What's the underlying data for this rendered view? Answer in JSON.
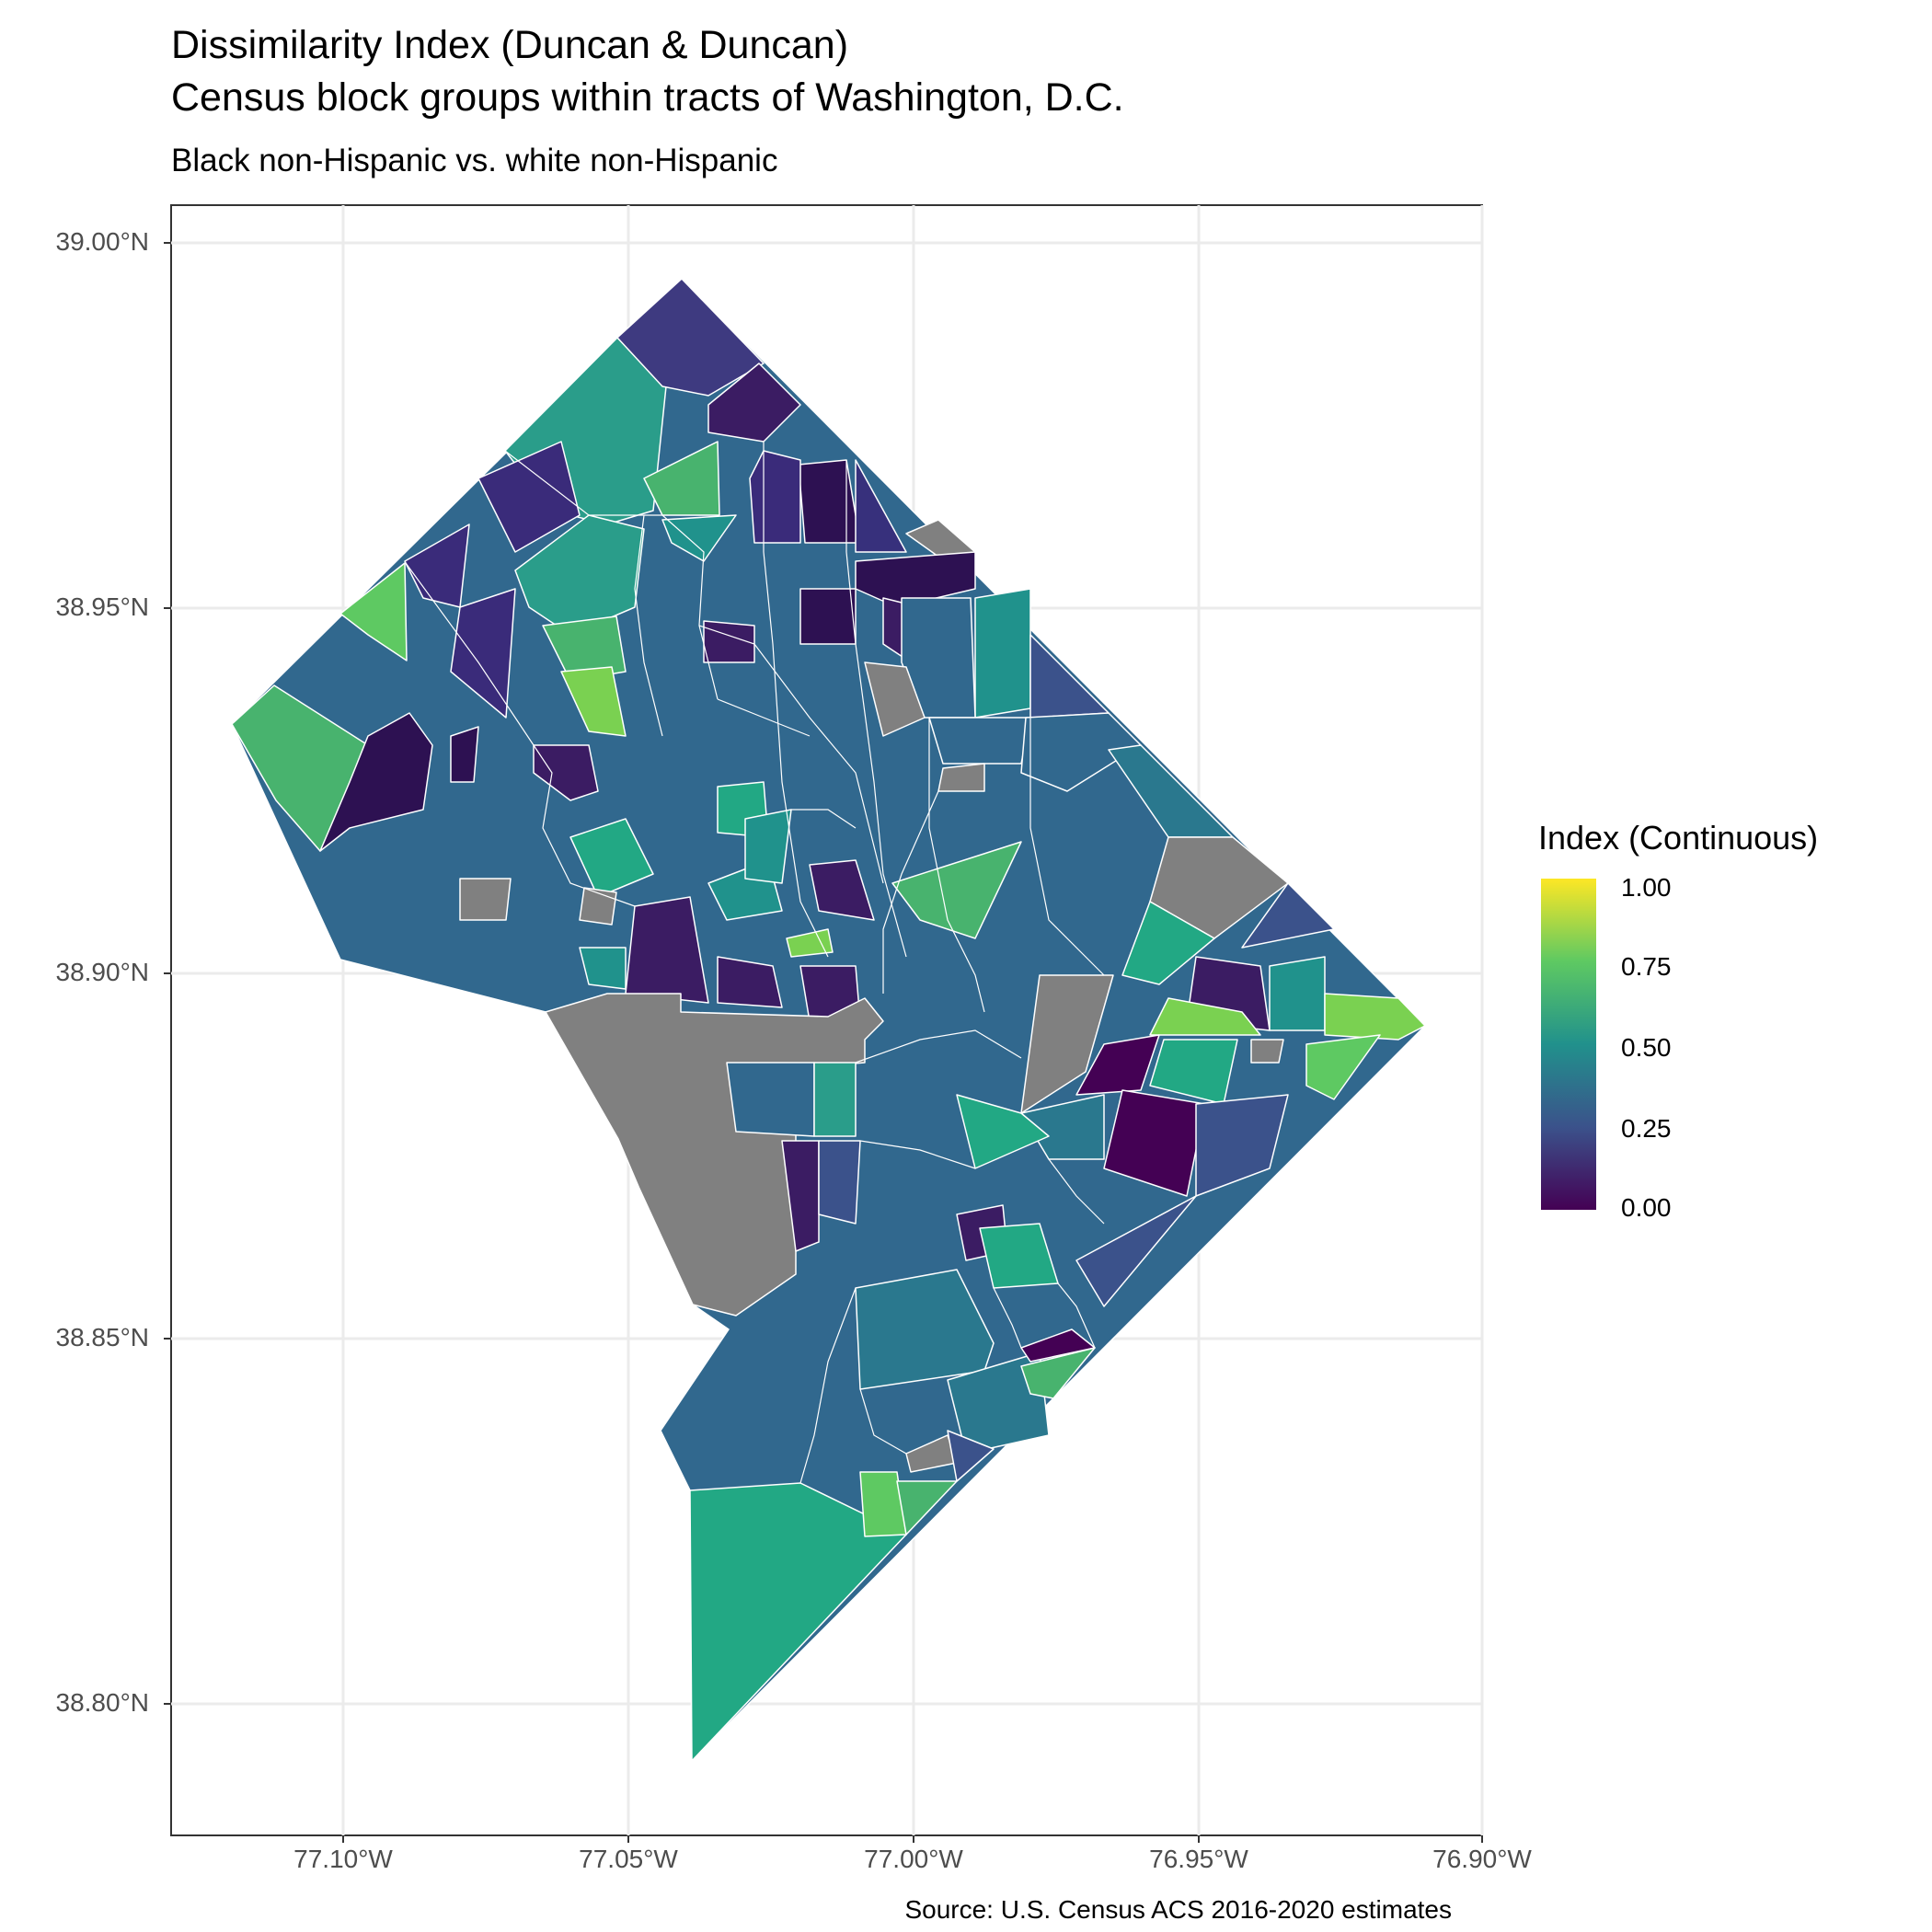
{
  "title_line1": "Dissimilarity Index (Duncan & Duncan)",
  "title_line2": "Census block groups within tracts of Washington, D.C.",
  "subtitle": "Black non-Hispanic vs. white non-Hispanic",
  "caption": "Source: U.S. Census ACS 2016-2020 estimates",
  "legend": {
    "title": "Index (Continuous)",
    "labels": [
      "1.00",
      "0.75",
      "0.50",
      "0.25",
      "0.00"
    ],
    "colors": [
      "#fde725",
      "#5ec962",
      "#21918c",
      "#3b528b",
      "#440154"
    ],
    "na_color": "#808080"
  },
  "axes": {
    "y_ticks": [
      "39.00°N",
      "38.95°N",
      "38.90°N",
      "38.85°N",
      "38.80°N"
    ],
    "x_ticks": [
      "77.10°W",
      "77.05°W",
      "77.00°W",
      "76.95°W",
      "76.90°W"
    ],
    "grid": true
  }
}
